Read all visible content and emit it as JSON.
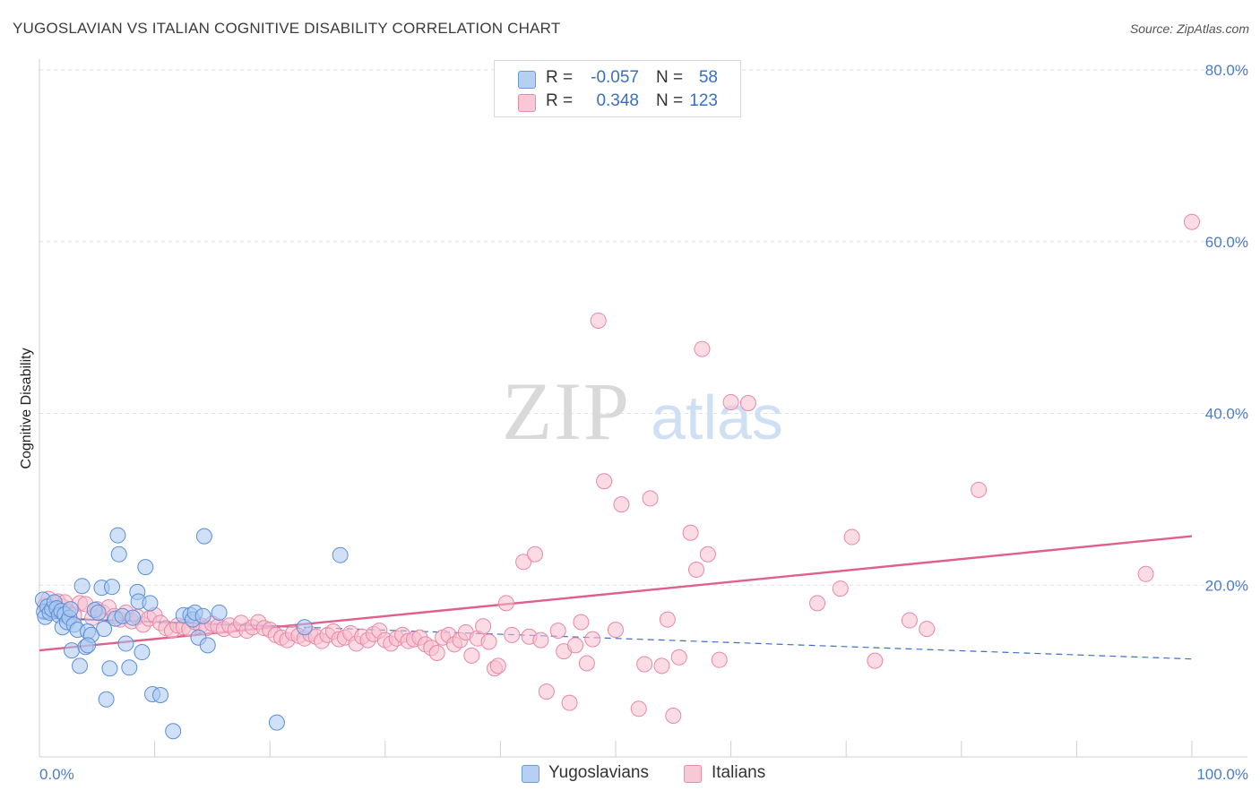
{
  "header": {
    "title": "YUGOSLAVIAN VS ITALIAN COGNITIVE DISABILITY CORRELATION CHART",
    "source": "Source: ZipAtlas.com"
  },
  "legend": {
    "rows": [
      {
        "r_label": "R =",
        "r_value": "-0.057",
        "n_label": "N =",
        "n_value": "58"
      },
      {
        "r_label": "R =",
        "r_value": "0.348",
        "n_label": "N =",
        "n_value": "123"
      }
    ]
  },
  "bottom_legend": {
    "series_1": "Yugoslavians",
    "series_2": "Italians"
  },
  "watermark": {
    "zip": "ZIP",
    "atlas": "atlas"
  },
  "colors": {
    "blue_fill": "#a9c8f0",
    "blue_stroke": "#5b8fd6",
    "blue_line": "#3d6fc6",
    "pink_fill": "#f7bfd0",
    "pink_stroke": "#e987a8",
    "pink_line": "#e0608a",
    "tick_text": "#4a7cc7",
    "grid": "#e2e2e2"
  },
  "chart_data": {
    "type": "scatter",
    "title": "YUGOSLAVIAN VS ITALIAN COGNITIVE DISABILITY CORRELATION CHART",
    "xlabel": "",
    "ylabel": "Cognitive Disability",
    "xlim": [
      0,
      100
    ],
    "ylim": [
      0,
      80
    ],
    "x_tick_labels": [
      "0.0%",
      "100.0%"
    ],
    "y_ticks": [
      20,
      40,
      60,
      80
    ],
    "y_tick_labels": [
      "20.0%",
      "40.0%",
      "60.0%",
      "80.0%"
    ],
    "series": [
      {
        "name": "Yugoslavians",
        "R": -0.057,
        "N": 58,
        "trend": {
          "x0": 0,
          "y0": 16.2,
          "x1": 100,
          "y1": 11.4,
          "solid_until": 22
        },
        "points": [
          [
            0.3,
            18.3
          ],
          [
            0.4,
            16.9
          ],
          [
            0.5,
            16.3
          ],
          [
            0.7,
            17.5
          ],
          [
            0.9,
            16.8
          ],
          [
            1.1,
            17.2
          ],
          [
            1.3,
            18.0
          ],
          [
            1.5,
            17.3
          ],
          [
            1.7,
            16.5
          ],
          [
            1.9,
            17.0
          ],
          [
            2.0,
            15.1
          ],
          [
            2.2,
            16.6
          ],
          [
            2.4,
            15.7
          ],
          [
            2.6,
            16.2
          ],
          [
            2.8,
            12.4
          ],
          [
            3.0,
            15.4
          ],
          [
            3.3,
            14.8
          ],
          [
            3.5,
            10.6
          ],
          [
            3.7,
            19.9
          ],
          [
            4.0,
            12.8
          ],
          [
            4.2,
            14.6
          ],
          [
            4.5,
            14.2
          ],
          [
            4.8,
            17.1
          ],
          [
            5.1,
            16.8
          ],
          [
            5.4,
            19.7
          ],
          [
            5.6,
            14.9
          ],
          [
            5.8,
            6.7
          ],
          [
            6.1,
            10.3
          ],
          [
            6.3,
            19.8
          ],
          [
            6.6,
            16.1
          ],
          [
            6.8,
            25.8
          ],
          [
            6.9,
            23.6
          ],
          [
            7.2,
            16.4
          ],
          [
            7.5,
            13.2
          ],
          [
            7.8,
            10.4
          ],
          [
            8.1,
            16.2
          ],
          [
            8.5,
            19.2
          ],
          [
            8.6,
            18.1
          ],
          [
            8.9,
            12.2
          ],
          [
            9.2,
            22.1
          ],
          [
            9.6,
            17.9
          ],
          [
            9.8,
            7.3
          ],
          [
            10.5,
            7.2
          ],
          [
            11.6,
            3.0
          ],
          [
            12.5,
            16.5
          ],
          [
            13.1,
            16.5
          ],
          [
            13.3,
            16.0
          ],
          [
            13.5,
            16.8
          ],
          [
            13.8,
            13.9
          ],
          [
            14.2,
            16.4
          ],
          [
            14.3,
            25.7
          ],
          [
            14.6,
            13.0
          ],
          [
            15.6,
            16.8
          ],
          [
            20.6,
            4.0
          ],
          [
            23.0,
            15.1
          ],
          [
            26.1,
            23.5
          ],
          [
            4.2,
            13.0
          ],
          [
            2.7,
            17.2
          ]
        ]
      },
      {
        "name": "Italians",
        "R": 0.348,
        "N": 123,
        "trend": {
          "x0": 0,
          "y0": 12.4,
          "x1": 100,
          "y1": 25.7
        },
        "points": [
          [
            0.5,
            17.6
          ],
          [
            0.8,
            18.4
          ],
          [
            1.2,
            17.0
          ],
          [
            1.6,
            18.1
          ],
          [
            2.0,
            17.5
          ],
          [
            2.5,
            16.9
          ],
          [
            3.0,
            16.5
          ],
          [
            3.5,
            17.9
          ],
          [
            4.0,
            17.8
          ],
          [
            4.6,
            16.2
          ],
          [
            5.0,
            17.2
          ],
          [
            5.5,
            16.8
          ],
          [
            6.0,
            17.4
          ],
          [
            6.5,
            16.4
          ],
          [
            7.0,
            16.0
          ],
          [
            7.5,
            16.8
          ],
          [
            8.0,
            15.8
          ],
          [
            8.5,
            16.3
          ],
          [
            9.0,
            15.4
          ],
          [
            9.5,
            16.1
          ],
          [
            10.0,
            16.5
          ],
          [
            10.5,
            15.6
          ],
          [
            11.0,
            15.0
          ],
          [
            11.5,
            14.7
          ],
          [
            12.0,
            15.3
          ],
          [
            12.5,
            15.1
          ],
          [
            13.0,
            14.9
          ],
          [
            13.5,
            15.7
          ],
          [
            14.0,
            15.3
          ],
          [
            14.5,
            15.0
          ],
          [
            15.0,
            15.5
          ],
          [
            15.5,
            15.2
          ],
          [
            16.0,
            14.9
          ],
          [
            16.5,
            15.3
          ],
          [
            17.0,
            14.8
          ],
          [
            17.5,
            15.6
          ],
          [
            18.0,
            14.7
          ],
          [
            18.5,
            15.1
          ],
          [
            19.0,
            15.7
          ],
          [
            19.5,
            15.0
          ],
          [
            20.0,
            14.8
          ],
          [
            20.5,
            14.2
          ],
          [
            21.0,
            13.9
          ],
          [
            21.5,
            13.6
          ],
          [
            22.0,
            14.4
          ],
          [
            22.5,
            14.1
          ],
          [
            23.0,
            13.8
          ],
          [
            23.5,
            14.3
          ],
          [
            24.0,
            14.0
          ],
          [
            24.5,
            13.5
          ],
          [
            25.0,
            14.2
          ],
          [
            25.5,
            14.6
          ],
          [
            26.0,
            13.7
          ],
          [
            26.5,
            13.9
          ],
          [
            27.0,
            14.4
          ],
          [
            27.5,
            13.2
          ],
          [
            28.0,
            14.0
          ],
          [
            28.5,
            13.6
          ],
          [
            29.0,
            14.3
          ],
          [
            29.5,
            14.7
          ],
          [
            30.0,
            13.6
          ],
          [
            30.5,
            13.2
          ],
          [
            31.0,
            13.8
          ],
          [
            31.5,
            14.2
          ],
          [
            32.0,
            13.5
          ],
          [
            32.5,
            13.7
          ],
          [
            33.0,
            13.9
          ],
          [
            33.5,
            13.1
          ],
          [
            34.0,
            12.7
          ],
          [
            34.5,
            12.1
          ],
          [
            35.0,
            13.9
          ],
          [
            35.5,
            14.2
          ],
          [
            36.0,
            13.1
          ],
          [
            36.5,
            13.6
          ],
          [
            37.0,
            14.5
          ],
          [
            37.5,
            11.8
          ],
          [
            38.0,
            13.8
          ],
          [
            38.5,
            15.2
          ],
          [
            39.0,
            13.4
          ],
          [
            39.5,
            10.3
          ],
          [
            39.8,
            10.6
          ],
          [
            40.5,
            17.9
          ],
          [
            41.0,
            14.2
          ],
          [
            42.0,
            22.7
          ],
          [
            42.5,
            14.0
          ],
          [
            43.0,
            23.6
          ],
          [
            43.5,
            13.6
          ],
          [
            44.0,
            7.6
          ],
          [
            45.0,
            14.7
          ],
          [
            45.5,
            12.3
          ],
          [
            46.0,
            6.3
          ],
          [
            46.5,
            13.0
          ],
          [
            47.0,
            15.7
          ],
          [
            47.5,
            10.9
          ],
          [
            48.0,
            13.7
          ],
          [
            48.5,
            50.8
          ],
          [
            49.0,
            32.1
          ],
          [
            50.0,
            14.8
          ],
          [
            50.5,
            29.4
          ],
          [
            52.0,
            5.6
          ],
          [
            52.5,
            10.8
          ],
          [
            53.0,
            30.1
          ],
          [
            54.0,
            10.6
          ],
          [
            54.5,
            16.0
          ],
          [
            55.0,
            4.8
          ],
          [
            55.5,
            11.6
          ],
          [
            56.5,
            26.1
          ],
          [
            57.0,
            21.8
          ],
          [
            57.5,
            47.5
          ],
          [
            58.0,
            23.6
          ],
          [
            59.0,
            11.3
          ],
          [
            60.0,
            41.3
          ],
          [
            61.5,
            41.2
          ],
          [
            67.5,
            17.9
          ],
          [
            69.5,
            19.6
          ],
          [
            70.5,
            25.6
          ],
          [
            72.5,
            11.2
          ],
          [
            75.5,
            15.9
          ],
          [
            77.0,
            14.9
          ],
          [
            81.5,
            31.1
          ],
          [
            96.0,
            21.3
          ],
          [
            100.0,
            62.3
          ],
          [
            2.2,
            18.0
          ]
        ]
      }
    ]
  }
}
